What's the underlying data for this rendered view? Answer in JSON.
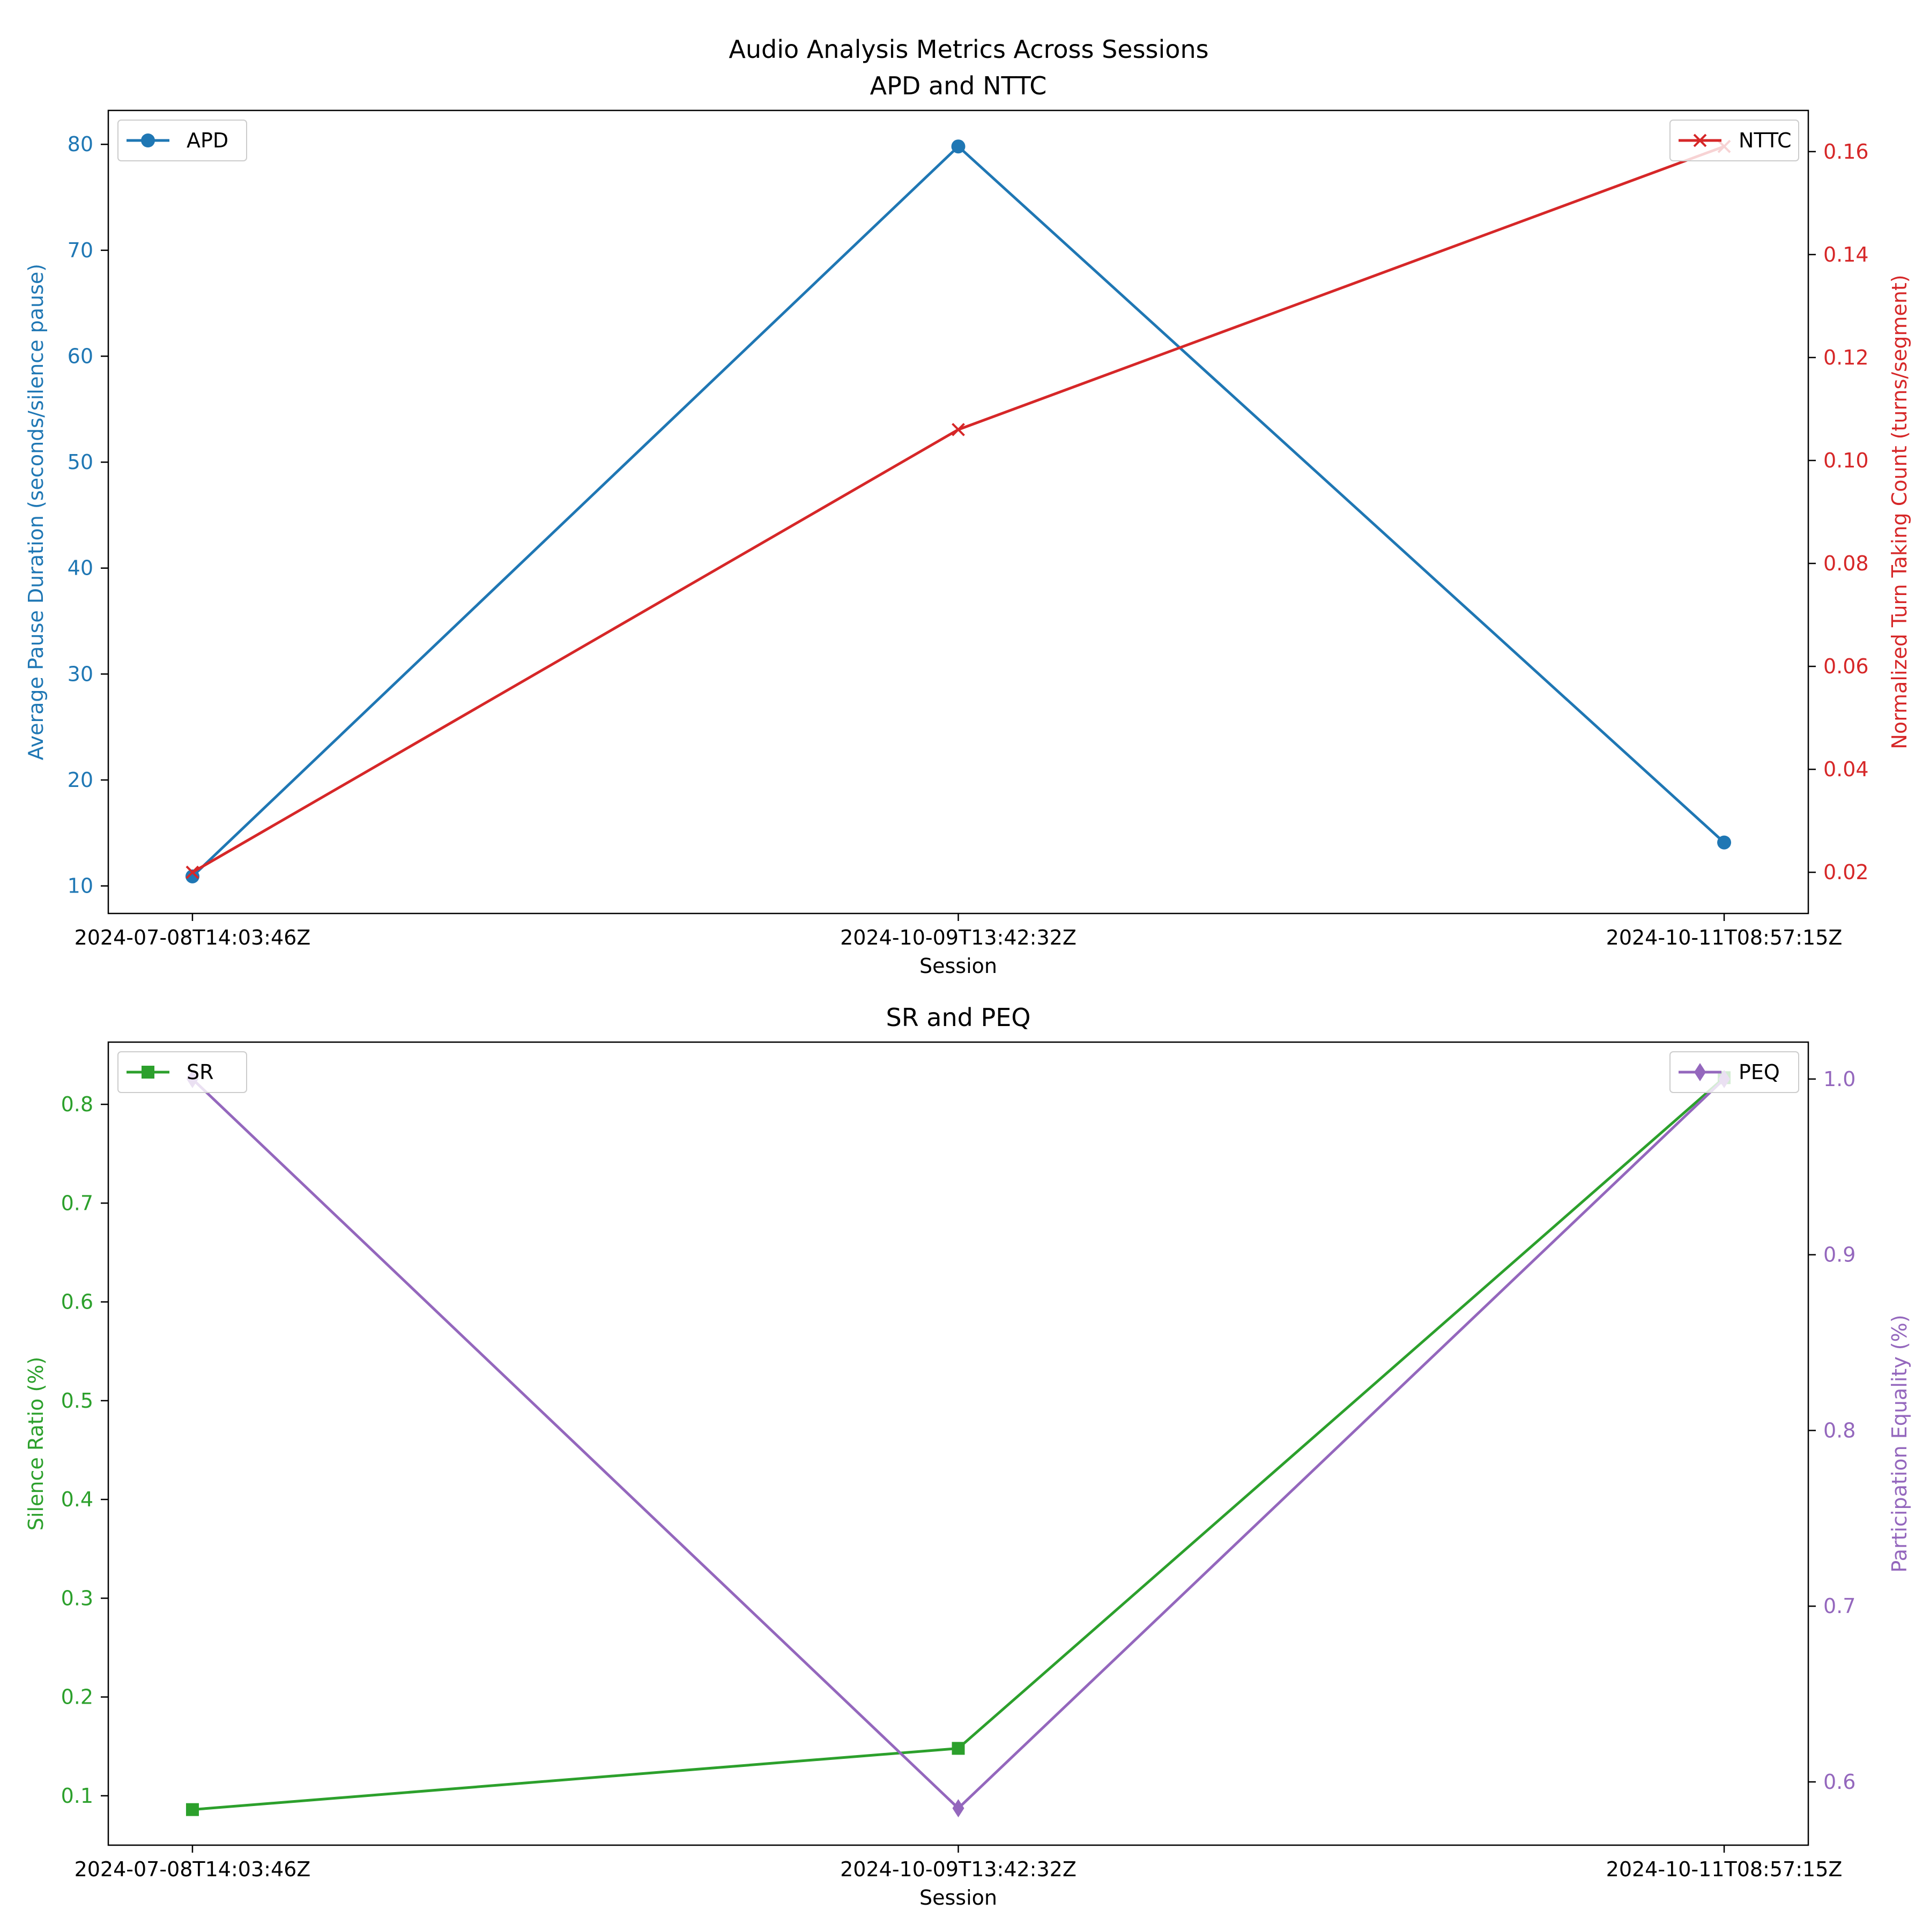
{
  "figure": {
    "suptitle": "Audio Analysis Metrics Across Sessions"
  },
  "chart_data": [
    {
      "type": "line",
      "title": "APD and NTTC",
      "xlabel": "Session",
      "categories": [
        "2024-07-08T14:03:46Z",
        "2024-10-09T13:42:32Z",
        "2024-10-11T08:57:15Z"
      ],
      "left_axis": {
        "label": "Average Pause Duration (seconds/silence pause)",
        "color": "#1f77b4",
        "ylim": [
          7.4,
          83.2
        ],
        "ticks": [
          10,
          20,
          30,
          40,
          50,
          60,
          70,
          80
        ],
        "tick_labels": [
          "10",
          "20",
          "30",
          "40",
          "50",
          "60",
          "70",
          "80"
        ]
      },
      "right_axis": {
        "label": "Normalized Turn Taking Count (turns/segment)",
        "color": "#d62728",
        "ylim": [
          0.012,
          0.168
        ],
        "ticks": [
          0.02,
          0.04,
          0.06,
          0.08,
          0.1,
          0.12,
          0.14,
          0.16
        ],
        "tick_labels": [
          "0.02",
          "0.04",
          "0.06",
          "0.08",
          "0.10",
          "0.12",
          "0.14",
          "0.16"
        ]
      },
      "series": [
        {
          "name": "APD",
          "axis": "left",
          "color": "#1f77b4",
          "marker": "circle",
          "values": [
            10.9,
            79.8,
            14.1
          ]
        },
        {
          "name": "NTTC",
          "axis": "right",
          "color": "#d62728",
          "marker": "x",
          "values": [
            0.02,
            0.106,
            0.161
          ]
        }
      ],
      "legend": {
        "left": "upper left",
        "right": "upper right"
      }
    },
    {
      "type": "line",
      "title": "SR and PEQ",
      "xlabel": "Session",
      "categories": [
        "2024-07-08T14:03:46Z",
        "2024-10-09T13:42:32Z",
        "2024-10-11T08:57:15Z"
      ],
      "left_axis": {
        "label": "Silence Ratio (%)",
        "color": "#2ca02c",
        "ylim": [
          0.05,
          0.863
        ],
        "ticks": [
          0.1,
          0.2,
          0.3,
          0.4,
          0.5,
          0.6,
          0.7,
          0.8
        ],
        "tick_labels": [
          "0.1",
          "0.2",
          "0.3",
          "0.4",
          "0.5",
          "0.6",
          "0.7",
          "0.8"
        ]
      },
      "right_axis": {
        "label": "Participation Equality (%)",
        "color": "#9467bd",
        "ylim": [
          0.564,
          1.021
        ],
        "ticks": [
          0.6,
          0.7,
          0.8,
          0.9,
          1.0
        ],
        "tick_labels": [
          "0.6",
          "0.7",
          "0.8",
          "0.9",
          "1.0"
        ]
      },
      "series": [
        {
          "name": "SR",
          "axis": "left",
          "color": "#2ca02c",
          "marker": "square",
          "values": [
            0.086,
            0.148,
            0.827
          ]
        },
        {
          "name": "PEQ",
          "axis": "right",
          "color": "#9467bd",
          "marker": "diamond",
          "values": [
            1.0,
            0.585,
            1.0
          ]
        }
      ],
      "legend": {
        "left": "upper left",
        "right": "upper right"
      }
    }
  ]
}
